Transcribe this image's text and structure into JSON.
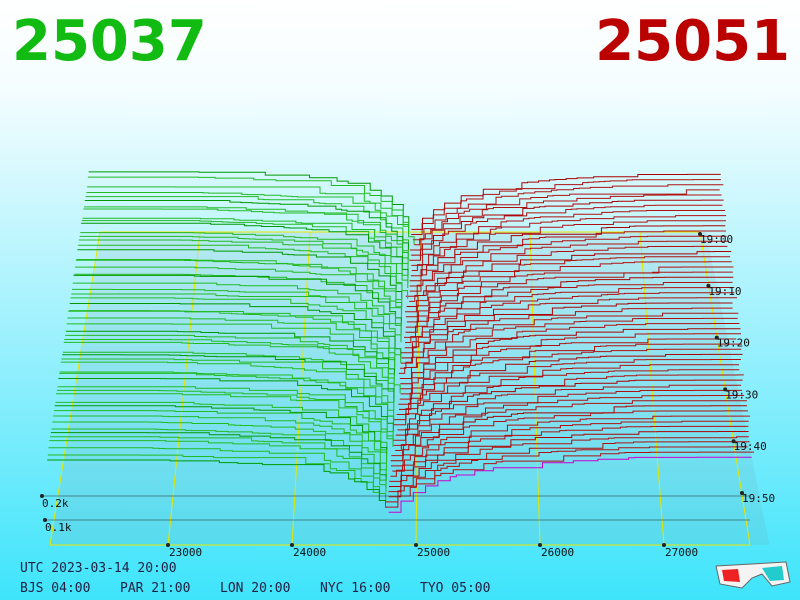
{
  "header": {
    "bid": "25037",
    "ask": "25051"
  },
  "axis": {
    "price_labels": [
      "23000",
      "24000",
      "25000",
      "26000",
      "27000"
    ],
    "time_labels": [
      "19:00",
      "19:10",
      "19:20",
      "19:30",
      "19:40",
      "19:50"
    ],
    "depth_labels": [
      "0.2k",
      "0.1k"
    ]
  },
  "footer": {
    "utc": "UTC 2023-03-14 20:00",
    "zones": [
      "BJS 04:00",
      "PAR 21:00",
      "LON 20:00",
      "NYC 16:00",
      "TYO 05:00"
    ]
  }
}
